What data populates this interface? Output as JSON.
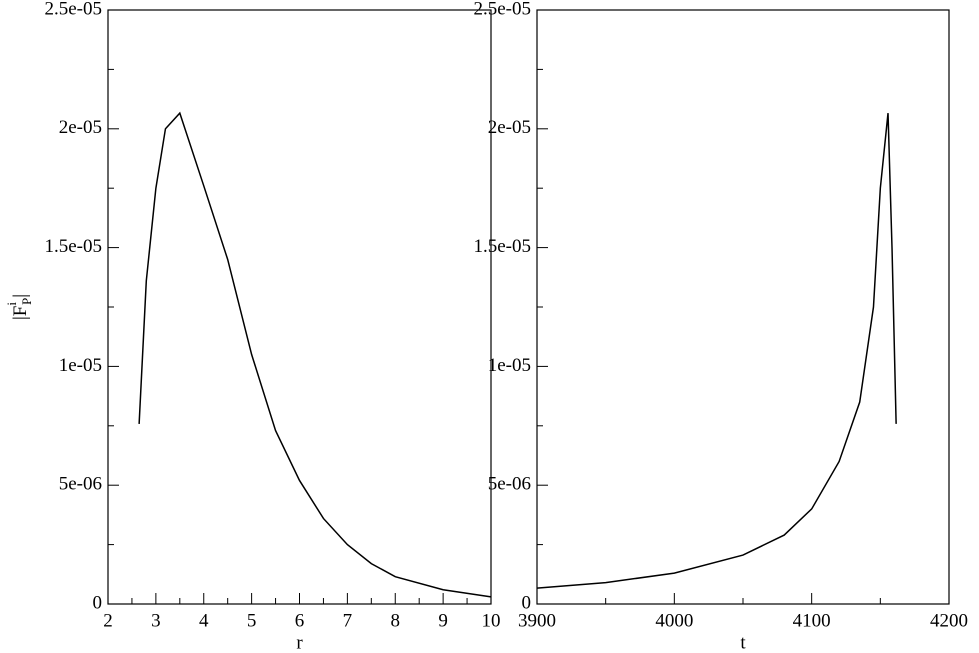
{
  "chart_data": [
    {
      "type": "line",
      "xlabel": "r",
      "ylabel": {
        "open": "|F",
        "sup": "i",
        "sub": "P",
        "close": "|"
      },
      "x": [
        2.65,
        2.8,
        3.0,
        3.2,
        3.5,
        4.0,
        4.5,
        5.0,
        5.5,
        6.0,
        6.5,
        7.0,
        7.5,
        8.0,
        9.0,
        10.0
      ],
      "values": [
        7.58e-06,
        1.36e-05,
        1.75e-05,
        2e-05,
        2.066e-05,
        1.76e-05,
        1.45e-05,
        1.05e-05,
        7.3e-06,
        5.2e-06,
        3.6e-06,
        2.5e-06,
        1.7e-06,
        1.15e-06,
        6e-07,
        3e-07
      ],
      "color": "#000000",
      "xlim": [
        2,
        10
      ],
      "xticks": [
        2,
        3,
        4,
        5,
        6,
        7,
        8,
        9,
        10
      ],
      "ylim": [
        0,
        2.5e-05
      ],
      "yticks": [
        0,
        {
          "value": 5e-06,
          "label": "5e-06"
        },
        {
          "value": 1e-05,
          "label": "1e-05"
        },
        {
          "value": 1.5e-05,
          "label": "1.5e-05"
        },
        {
          "value": 2e-05,
          "label": "2e-05"
        },
        {
          "value": 2.5e-05,
          "label": "2.5e-05"
        }
      ]
    },
    {
      "type": "line",
      "xlabel": "t",
      "x": [
        3900,
        3950,
        4000,
        4050,
        4080,
        4100,
        4120,
        4135,
        4145,
        4150,
        4155.6,
        4158.5,
        4161.5
      ],
      "values": [
        6.7e-07,
        9e-07,
        1.3e-06,
        2.06e-06,
        2.9e-06,
        4e-06,
        6e-06,
        8.5e-06,
        1.25e-05,
        1.75e-05,
        2.066e-05,
        1.5e-05,
        7.58e-06
      ],
      "color": "#000000",
      "xlim": [
        3900,
        4200
      ],
      "xticks": [
        3900,
        4000,
        4100,
        4200
      ],
      "ylim": [
        0,
        2.5e-05
      ],
      "yticks": [
        0,
        {
          "value": 5e-06,
          "label": "5e-06"
        },
        {
          "value": 1e-05,
          "label": "1e-05"
        },
        {
          "value": 1.5e-05,
          "label": "1.5e-05"
        },
        {
          "value": 2e-05,
          "label": "2e-05"
        },
        {
          "value": 2.5e-05,
          "label": "2.5e-05"
        }
      ]
    }
  ]
}
